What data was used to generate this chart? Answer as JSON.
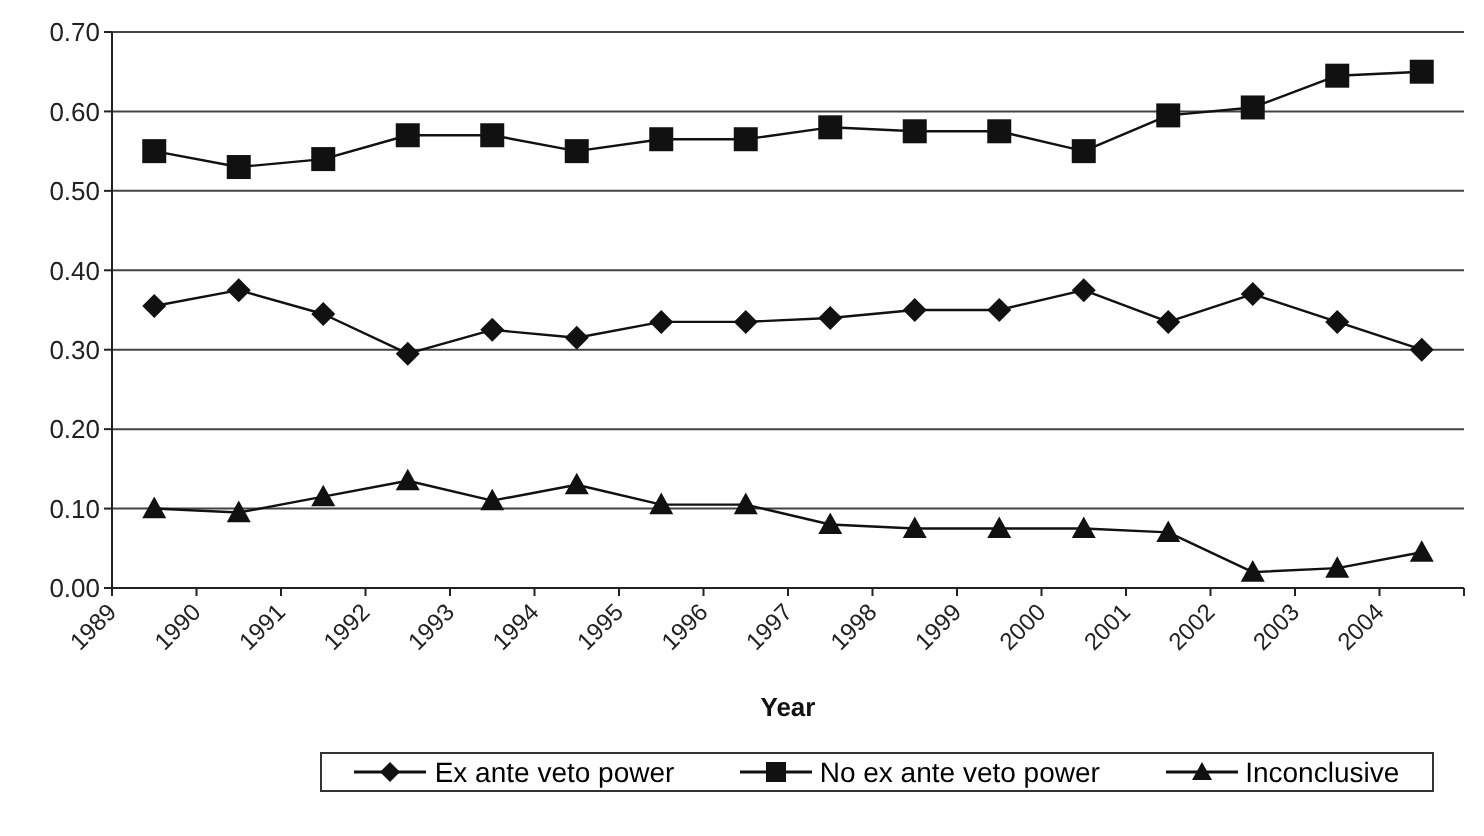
{
  "chart_data": {
    "type": "line",
    "xlabel": "Year",
    "x": [
      1989.5,
      1990.5,
      1991.5,
      1992.5,
      1993.5,
      1994.5,
      1995.5,
      1996.5,
      1997.5,
      1998.5,
      1999.5,
      2000.5,
      2001.5,
      2002.5,
      2003.5,
      2004.5
    ],
    "series": [
      {
        "name": "Ex ante veto power",
        "color": "#111111",
        "marker": "diamond",
        "values": [
          0.355,
          0.375,
          0.345,
          0.295,
          0.325,
          0.315,
          0.335,
          0.335,
          0.34,
          0.35,
          0.35,
          0.375,
          0.335,
          0.37,
          0.335,
          0.3
        ]
      },
      {
        "name": "No ex ante veto power",
        "color": "#111111",
        "marker": "square",
        "values": [
          0.55,
          0.53,
          0.54,
          0.57,
          0.57,
          0.55,
          0.565,
          0.565,
          0.58,
          0.575,
          0.575,
          0.55,
          0.595,
          0.605,
          0.645,
          0.65
        ]
      },
      {
        "name": "Inconclusive",
        "color": "#111111",
        "marker": "triangle",
        "values": [
          0.1,
          0.095,
          0.115,
          0.135,
          0.11,
          0.13,
          0.105,
          0.105,
          0.08,
          0.075,
          0.075,
          0.075,
          0.07,
          0.02,
          0.025,
          0.045
        ]
      }
    ],
    "xlim": [
      1989,
      2005
    ],
    "xticks": [
      1989,
      1990,
      1991,
      1992,
      1993,
      1994,
      1995,
      1996,
      1997,
      1998,
      1999,
      2000,
      2001,
      2002,
      2003,
      2004,
      {
        "value": 2005,
        "label": null
      }
    ],
    "ylim": [
      0,
      0.7
    ],
    "yticks": [
      {
        "value": 0,
        "label": "0.00"
      },
      {
        "value": 0.1,
        "label": "0.10"
      },
      {
        "value": 0.2,
        "label": "0.20"
      },
      {
        "value": 0.3,
        "label": "0.30"
      },
      {
        "value": 0.4,
        "label": "0.40"
      },
      {
        "value": 0.5,
        "label": "0.50"
      },
      {
        "value": 0.6,
        "label": "0.60"
      },
      {
        "value": 0.7,
        "label": "0.70"
      }
    ],
    "grid": "y",
    "legend": "bottom",
    "line_style": "solid"
  }
}
